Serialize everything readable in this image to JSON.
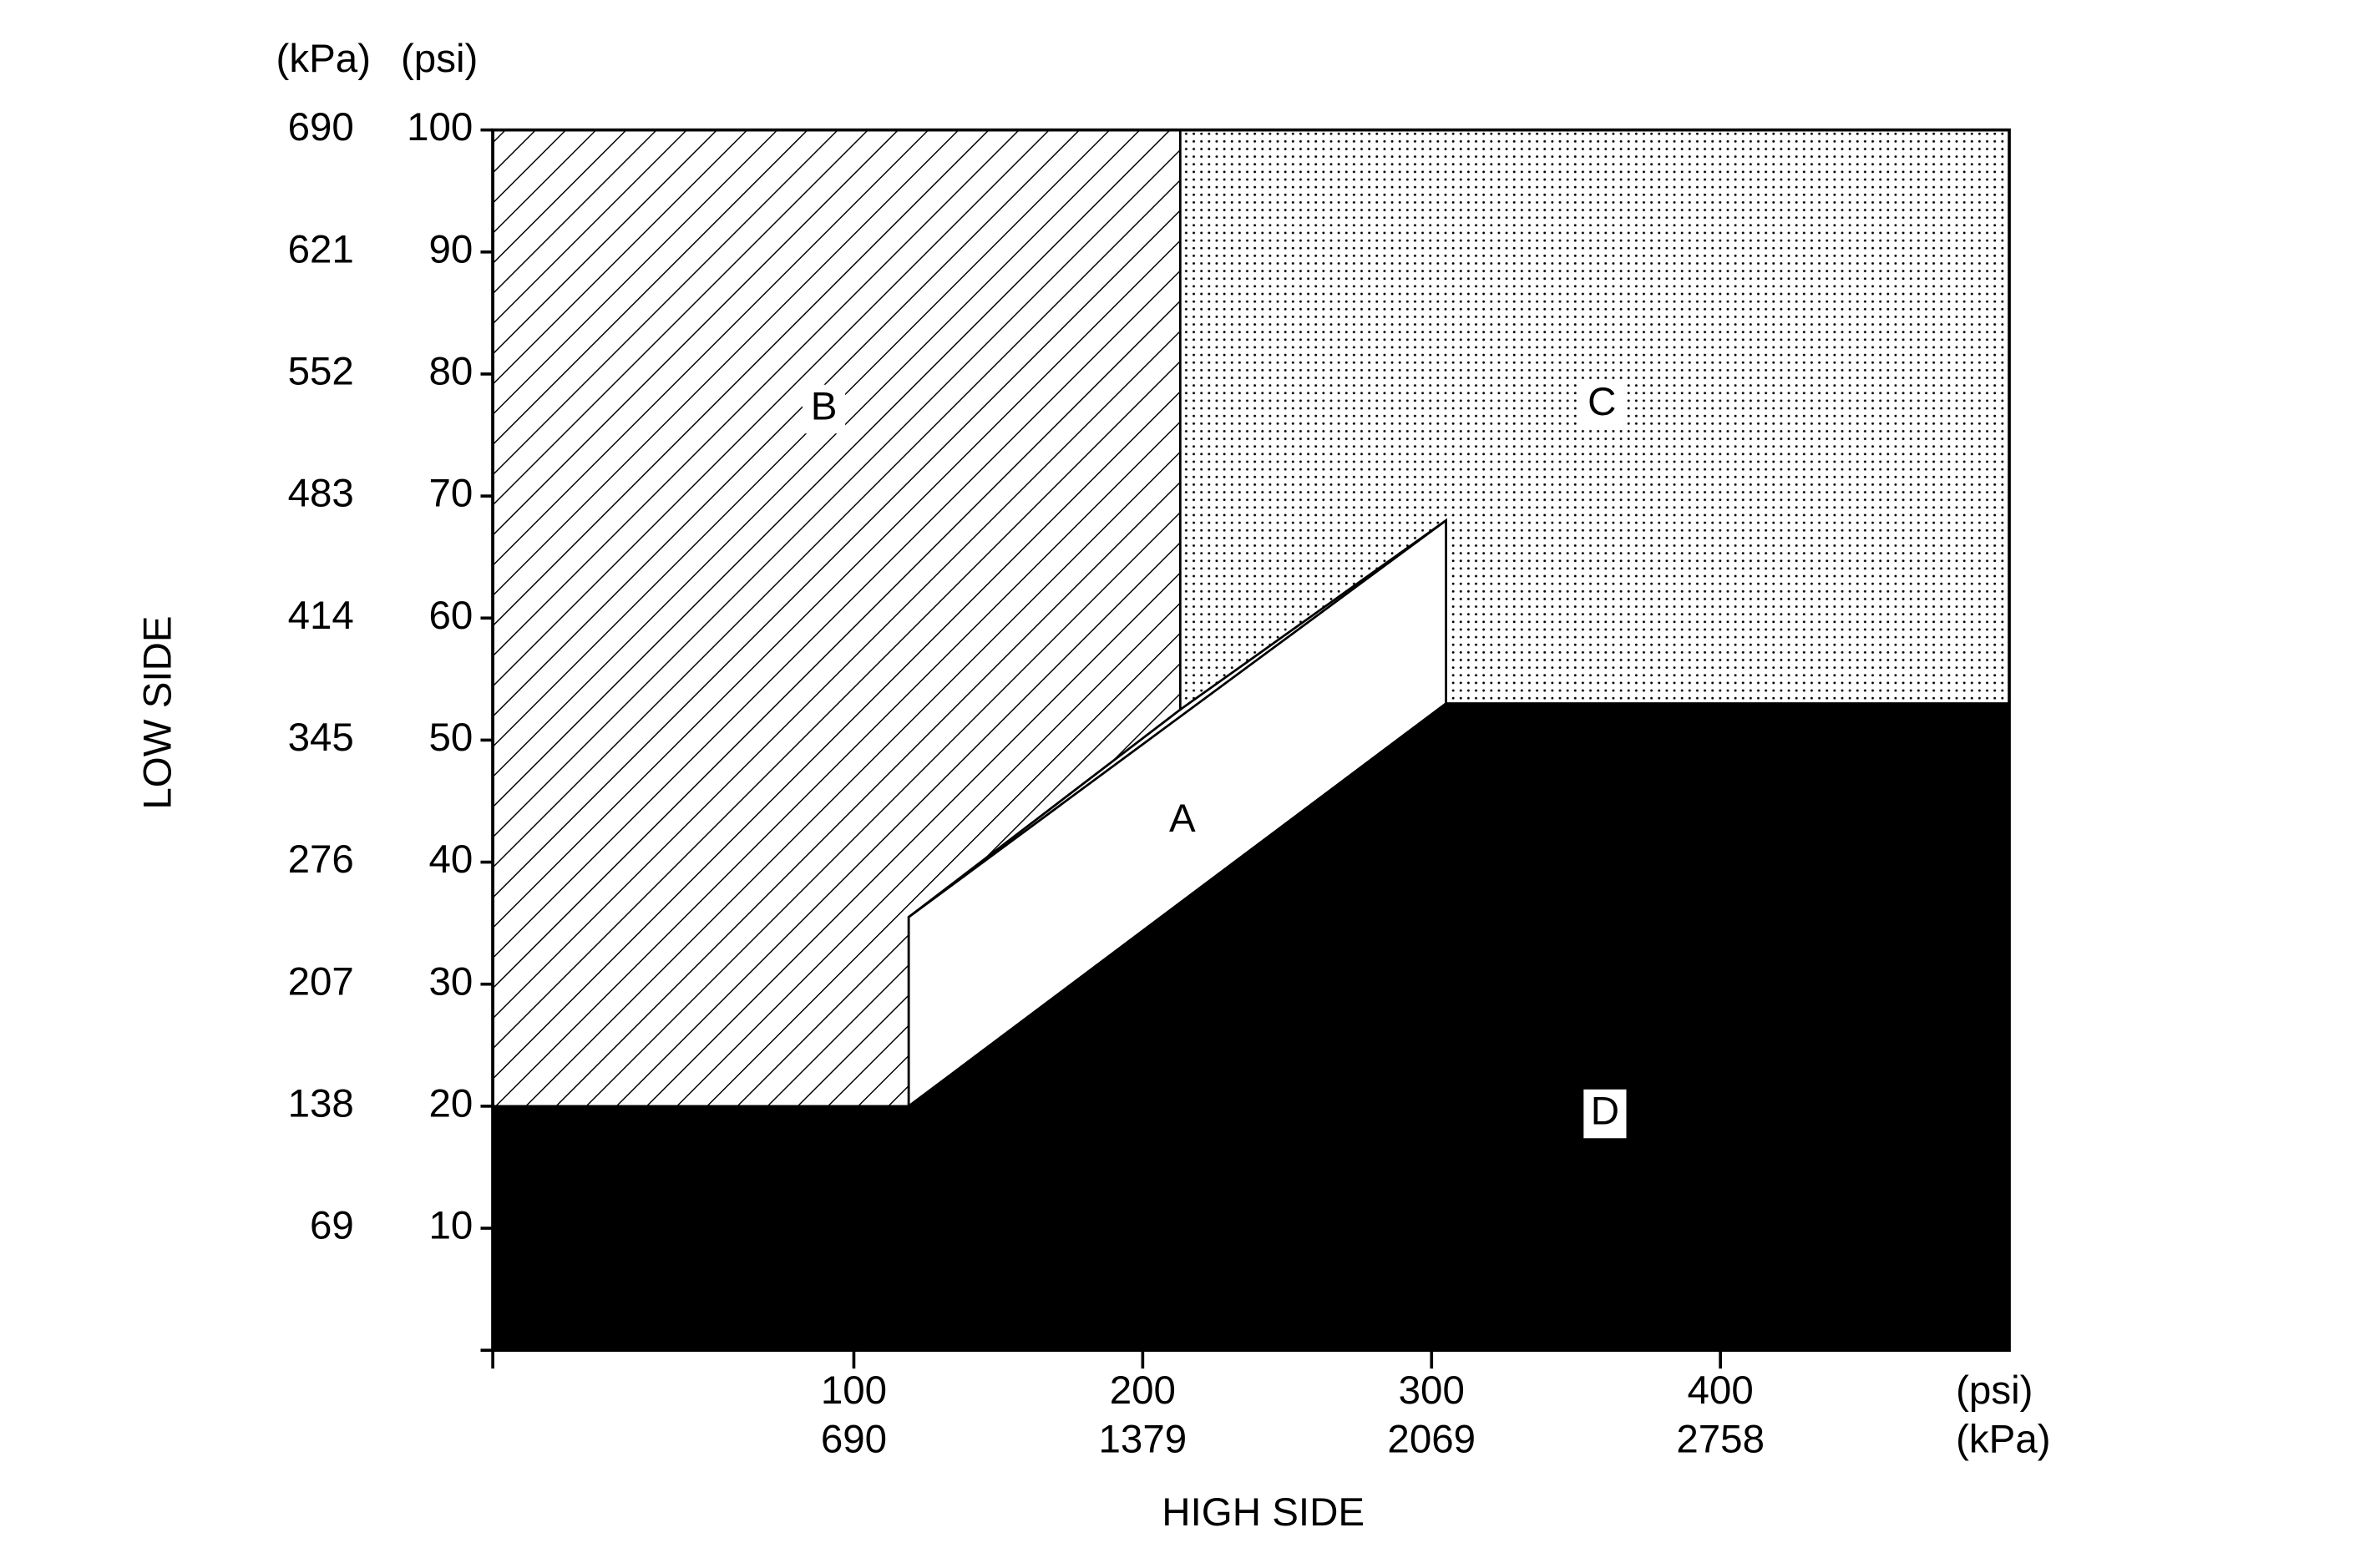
{
  "chart_data": {
    "type": "region",
    "x_label": "HIGH SIDE",
    "y_label": "LOW SIDE",
    "x_unit_primary": "(psi)",
    "x_unit_secondary": "(kPa)",
    "y_unit_primary": "(psi)",
    "y_unit_secondary": "(kPa)",
    "xlim": [
      -25,
      500
    ],
    "ylim": [
      0,
      100
    ],
    "xticks": [
      100,
      200,
      300,
      400
    ],
    "xticks_secondary": [
      "690",
      "1379",
      "2069",
      "2758"
    ],
    "yticks": [
      10,
      20,
      30,
      40,
      50,
      60,
      70,
      80,
      90,
      100
    ],
    "yticks_secondary": [
      "69",
      "138",
      "207",
      "276",
      "345",
      "414",
      "483",
      "552",
      "621",
      "690"
    ],
    "regions": [
      {
        "label": "B",
        "fill": "hatch",
        "x": [
          -25,
          213,
          213,
          119,
          119,
          -25
        ],
        "y": [
          100,
          100,
          52.5,
          35.5,
          20,
          20
        ]
      },
      {
        "label": "C",
        "fill": "dots",
        "x": [
          213,
          500,
          500,
          305,
          305,
          213
        ],
        "y": [
          100,
          100,
          53,
          53,
          68,
          52.5
        ]
      },
      {
        "label": "A",
        "fill": "white",
        "x": [
          119,
          305,
          305,
          119
        ],
        "y": [
          35.5,
          68,
          53,
          20
        ]
      },
      {
        "label": "D",
        "fill": "black",
        "x": [
          -25,
          119,
          305,
          500,
          500,
          -25
        ],
        "y": [
          20,
          20,
          53,
          53,
          0,
          0
        ]
      }
    ]
  }
}
